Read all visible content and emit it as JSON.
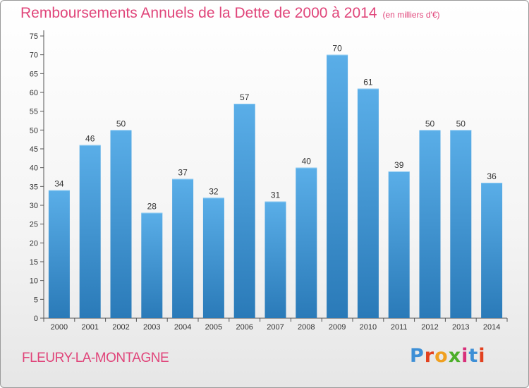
{
  "chart_data": {
    "type": "bar",
    "title": "Remboursements Annuels de la Dette de 2000 à 2014",
    "subtitle": "(en milliers d'€)",
    "categories": [
      "2000",
      "2001",
      "2002",
      "2003",
      "2004",
      "2005",
      "2006",
      "2007",
      "2008",
      "2009",
      "2010",
      "2011",
      "2012",
      "2013",
      "2014"
    ],
    "values": [
      34,
      46,
      50,
      28,
      37,
      32,
      57,
      31,
      40,
      70,
      61,
      39,
      50,
      50,
      36
    ],
    "ylim": [
      0,
      75
    ],
    "ytick_step": 5,
    "grid": false,
    "bar_color_top": "#5aaee8",
    "bar_color_bottom": "#2a7ab8"
  },
  "footer": {
    "city": "FLEURY-LA-MONTAGNE",
    "logo_letters": [
      "P",
      "r",
      "o",
      "x",
      "i",
      "t",
      "i"
    ],
    "logo_colors": [
      "#3d8fd6",
      "#e2411f",
      "#f0a020",
      "#4caf2a",
      "#d8307a",
      "#3d8fd6",
      "#e2411f"
    ]
  }
}
